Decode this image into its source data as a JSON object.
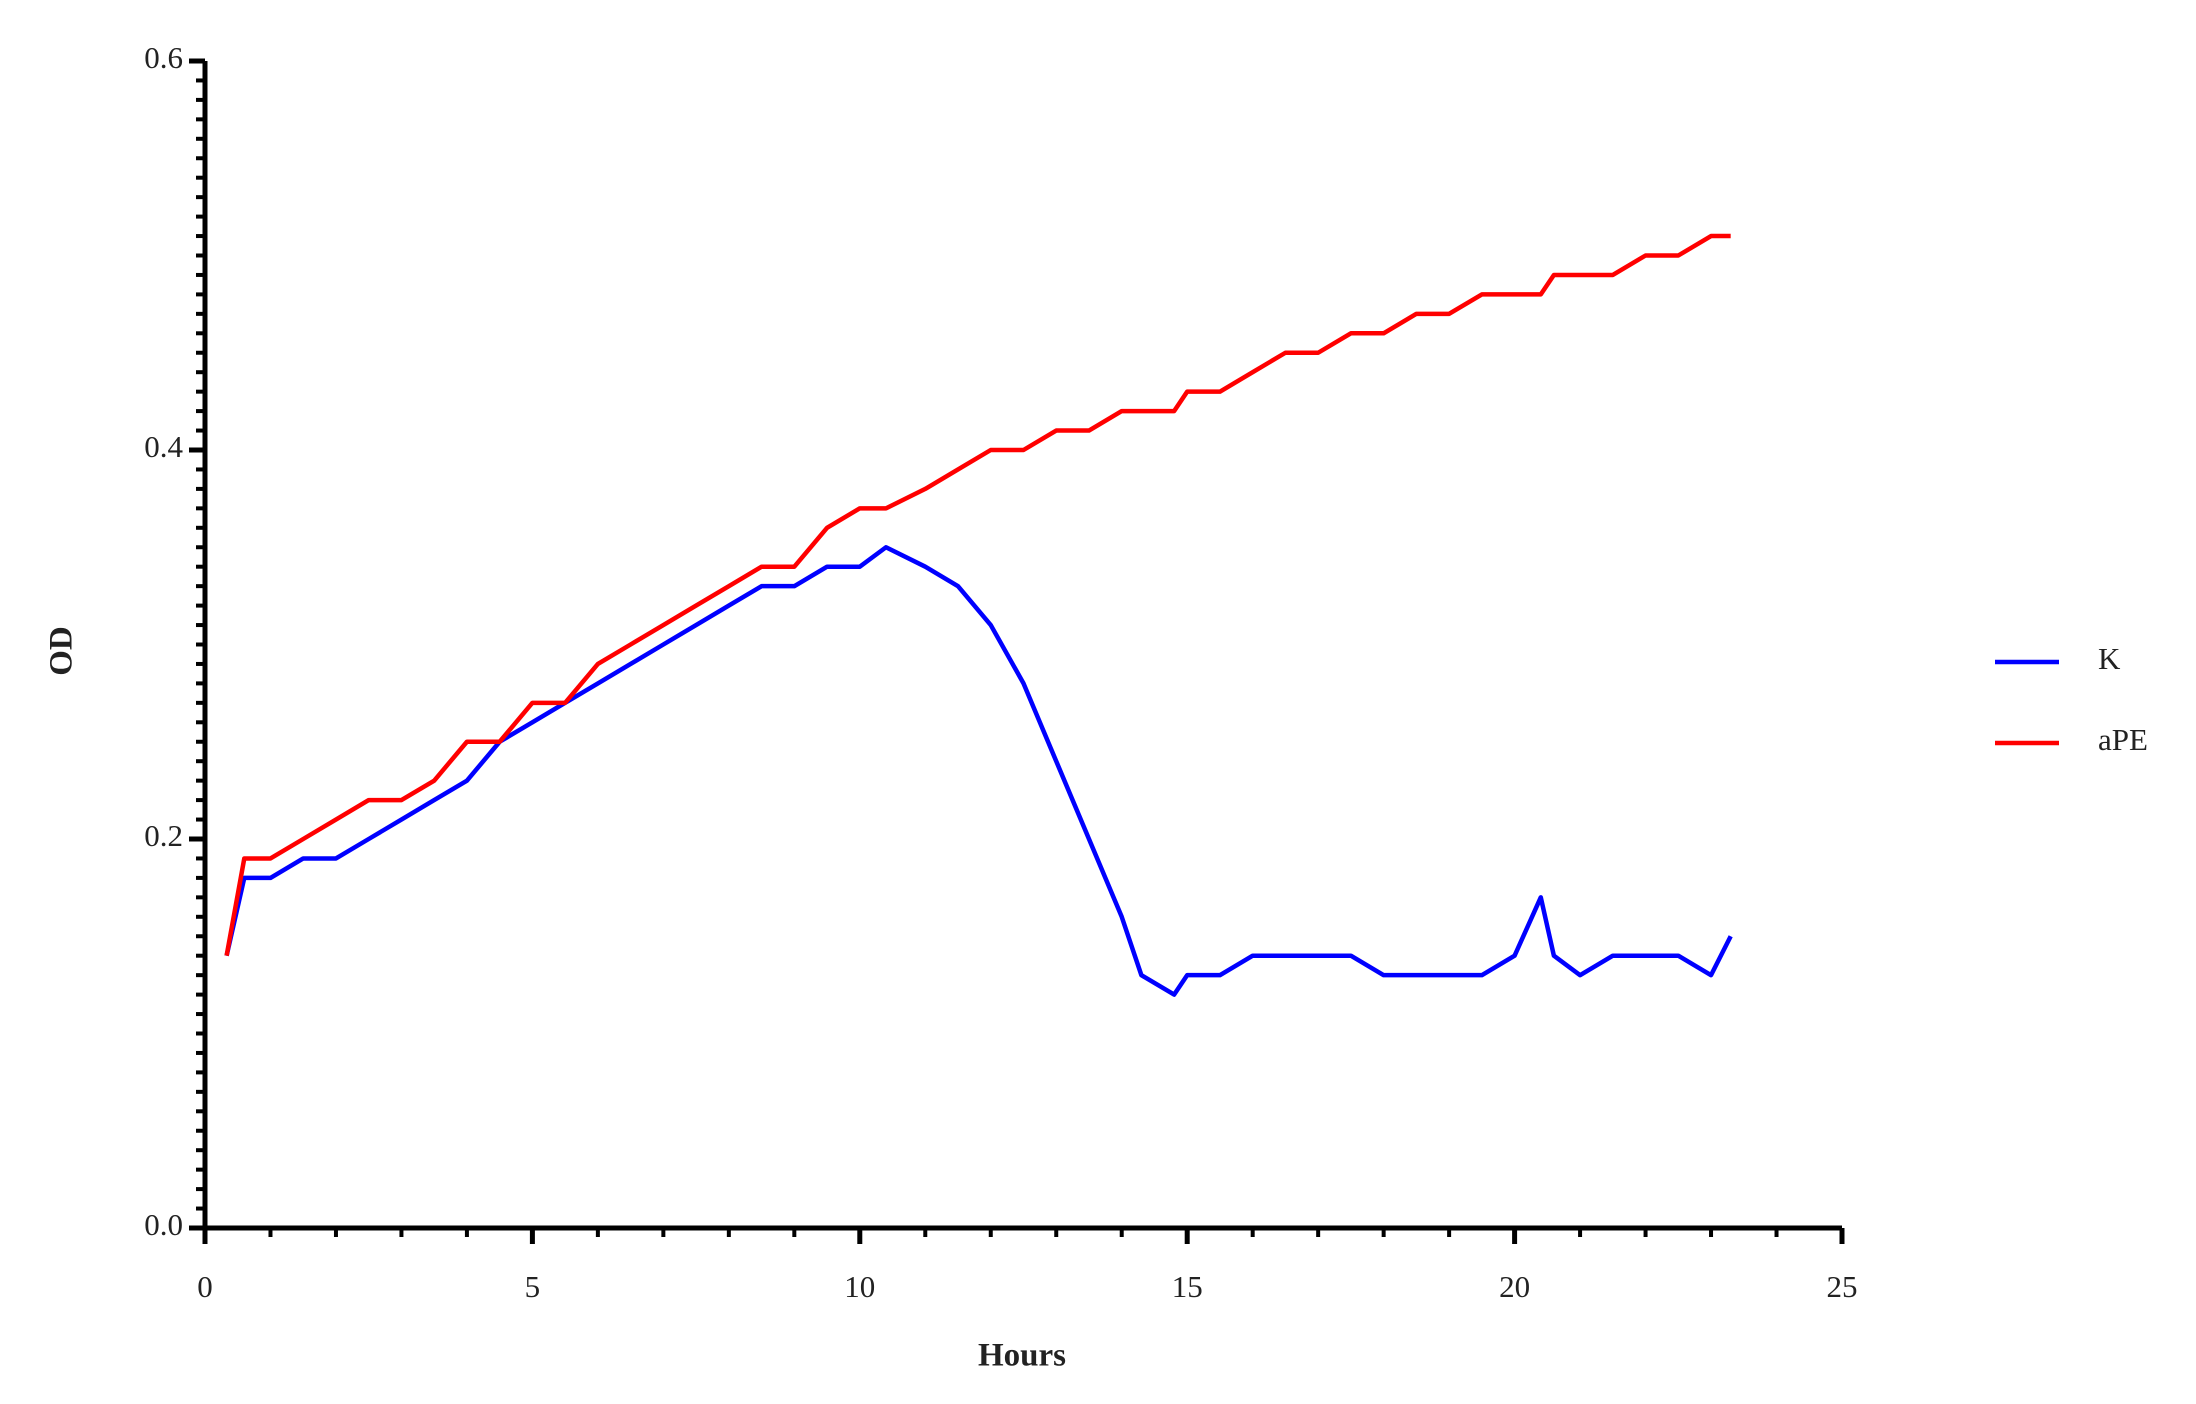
{
  "chart_data": {
    "type": "line",
    "x_label": "Hours",
    "y_label": "OD",
    "x": [
      0.33,
      0.6,
      1,
      1.5,
      2,
      2.5,
      3,
      3.5,
      4,
      4.5,
      5,
      5.5,
      6,
      6.5,
      7,
      7.5,
      8,
      8.5,
      9,
      9.5,
      10,
      10.4,
      11,
      11.5,
      12,
      12.5,
      13,
      13.5,
      14,
      14.3,
      14.8,
      15,
      15.5,
      16,
      16.5,
      17,
      17.5,
      18,
      18.5,
      19,
      19.5,
      20,
      20.4,
      20.6,
      21,
      21.5,
      22,
      22.5,
      23,
      23.3
    ],
    "series": [
      {
        "name": "K",
        "color": "#0000ff",
        "values": [
          0.14,
          0.18,
          0.18,
          0.19,
          0.19,
          0.2,
          0.21,
          0.22,
          0.23,
          0.25,
          0.26,
          0.27,
          0.28,
          0.29,
          0.3,
          0.31,
          0.32,
          0.33,
          0.33,
          0.34,
          0.34,
          0.35,
          0.34,
          0.33,
          0.31,
          0.28,
          0.24,
          0.2,
          0.16,
          0.13,
          0.12,
          0.13,
          0.13,
          0.14,
          0.14,
          0.14,
          0.14,
          0.13,
          0.13,
          0.13,
          0.13,
          0.14,
          0.17,
          0.14,
          0.13,
          0.14,
          0.14,
          0.14,
          0.13,
          0.15
        ]
      },
      {
        "name": "aPE",
        "color": "#ff0000",
        "values": [
          0.14,
          0.19,
          0.19,
          0.2,
          0.21,
          0.22,
          0.22,
          0.23,
          0.25,
          0.25,
          0.27,
          0.27,
          0.29,
          0.3,
          0.31,
          0.32,
          0.33,
          0.34,
          0.34,
          0.36,
          0.37,
          0.37,
          0.38,
          0.39,
          0.4,
          0.4,
          0.41,
          0.41,
          0.42,
          0.42,
          0.42,
          0.43,
          0.43,
          0.44,
          0.45,
          0.45,
          0.46,
          0.46,
          0.47,
          0.47,
          0.48,
          0.48,
          0.48,
          0.49,
          0.49,
          0.49,
          0.5,
          0.5,
          0.51,
          0.51
        ]
      }
    ],
    "xlim": [
      0,
      25
    ],
    "xticks": [
      0,
      5,
      10,
      15,
      20,
      25
    ],
    "ylim": [
      0,
      0.6
    ],
    "yticks": [
      {
        "value": 0,
        "label": "0.0"
      },
      0.2,
      0.4,
      0.6
    ],
    "legend": "right"
  }
}
